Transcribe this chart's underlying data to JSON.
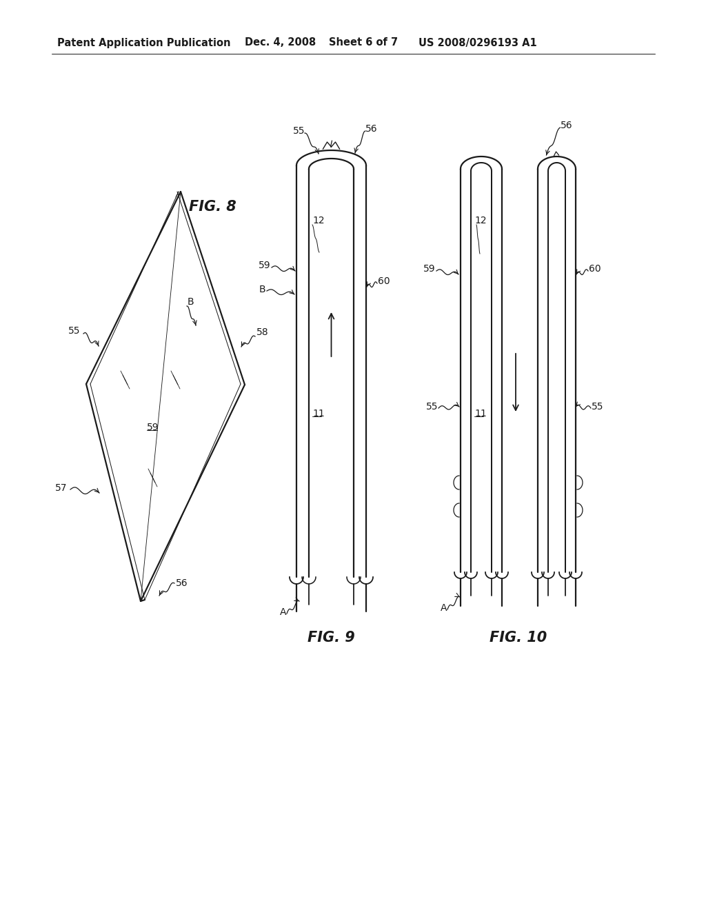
{
  "bg_color": "#ffffff",
  "header_text": "Patent Application Publication",
  "header_date": "Dec. 4, 2008",
  "header_sheet": "Sheet 6 of 7",
  "header_patent": "US 2008/0296193 A1",
  "fig8_label": "FIG. 8",
  "fig9_label": "FIG. 9",
  "fig10_label": "FIG. 10",
  "line_color": "#1a1a1a",
  "line_width": 1.6,
  "thin_line": 0.9
}
